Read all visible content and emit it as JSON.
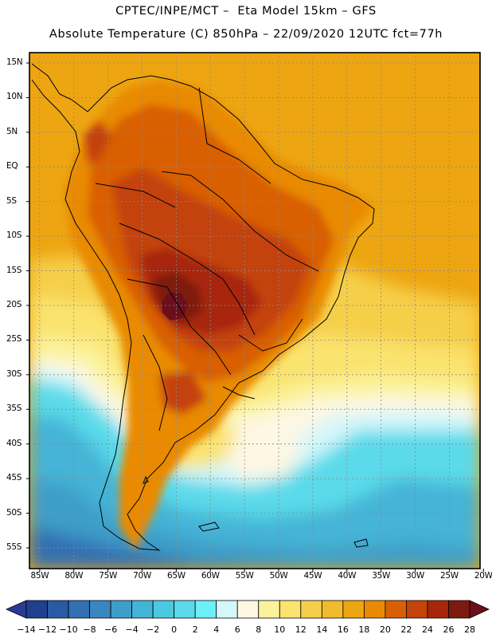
{
  "header": {
    "line1": "CPTEC/INPE/MCT –  Eta Model 15km – GFS",
    "line2": "Absolute Temperature (C) 850hPa – 22/09/2020 12UTC fct=77h"
  },
  "map": {
    "lat_labels": [
      "15N",
      "10N",
      "5N",
      "EQ",
      "5S",
      "10S",
      "15S",
      "20S",
      "25S",
      "30S",
      "35S",
      "40S",
      "45S",
      "50S",
      "55S"
    ],
    "lat_values": [
      15,
      10,
      5,
      0,
      -5,
      -10,
      -15,
      -20,
      -25,
      -30,
      -35,
      -40,
      -45,
      -50,
      -55
    ],
    "lon_labels": [
      "85W",
      "80W",
      "75W",
      "70W",
      "65W",
      "60W",
      "55W",
      "50W",
      "45W",
      "40W",
      "35W",
      "30W",
      "25W",
      "20W"
    ],
    "lon_values": [
      -85,
      -80,
      -75,
      -70,
      -65,
      -60,
      -55,
      -50,
      -45,
      -40,
      -35,
      -30,
      -25,
      -20
    ],
    "lat_range": [
      -58,
      16.5
    ],
    "lon_range": [
      -86.5,
      -20.5
    ]
  },
  "colorbar": {
    "labels": [
      "-14",
      "-12",
      "-10",
      "-8",
      "-6",
      "-4",
      "-2",
      "0",
      "2",
      "4",
      "6",
      "8",
      "10",
      "12",
      "14",
      "16",
      "18",
      "20",
      "22",
      "24",
      "26",
      "28"
    ],
    "colors": [
      "#1f3f8f",
      "#2a5aa4",
      "#3170b3",
      "#3a86c0",
      "#3e9ec9",
      "#44b4d6",
      "#4cc8e0",
      "#5adaea",
      "#6cf0f8",
      "#d3f7fb",
      "#fdf7e4",
      "#fbf39a",
      "#fae36e",
      "#f6cf4a",
      "#f1bb2e",
      "#eda511",
      "#e98a05",
      "#d95f05",
      "#c44309",
      "#a7270c",
      "#7d1a10"
    ],
    "under_color": "#2b3a94",
    "over_color": "#6b0f1d"
  }
}
